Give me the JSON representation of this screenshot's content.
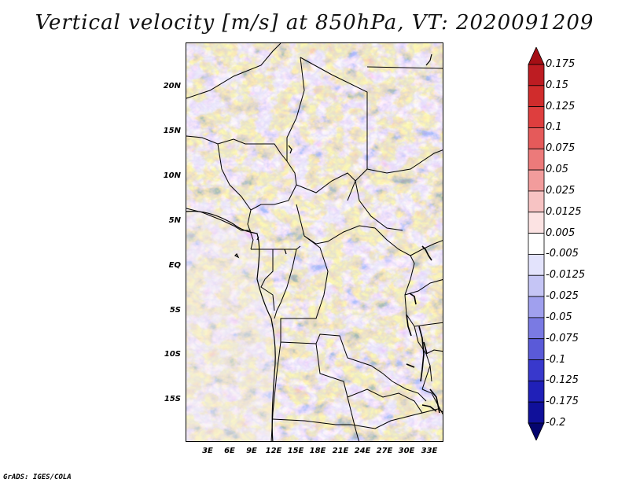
{
  "title": "Vertical velocity [m/s] at 850hPa, VT: 2020091209",
  "credit": "GrADS: IGES/COLA",
  "map": {
    "lat_labels": [
      "20N",
      "15N",
      "10N",
      "5N",
      "EQ",
      "5S",
      "10S",
      "15S"
    ],
    "lon_labels": [
      "3E",
      "6E",
      "9E",
      "12E",
      "15E",
      "18E",
      "21E",
      "24E",
      "27E",
      "30E",
      "33E"
    ]
  },
  "colorbar": {
    "labels": [
      "0.175",
      "0.15",
      "0.125",
      "0.1",
      "0.075",
      "0.05",
      "0.025",
      "0.0125",
      "0.005",
      "-0.005",
      "-0.0125",
      "-0.025",
      "-0.05",
      "-0.075",
      "-0.1",
      "-0.125",
      "-0.175",
      "-0.2"
    ],
    "colors": [
      "#a50f15",
      "#bd1c22",
      "#d02c2c",
      "#de3e3e",
      "#e55a5a",
      "#ec7a7a",
      "#f29c9c",
      "#f7c3c3",
      "#fce3e3",
      "#ffffff",
      "#e3e3fc",
      "#c5c5f5",
      "#a0a0ee",
      "#7a7ae3",
      "#5a5ad8",
      "#3838cc",
      "#2020b8",
      "#10109a",
      "#05056e"
    ]
  }
}
